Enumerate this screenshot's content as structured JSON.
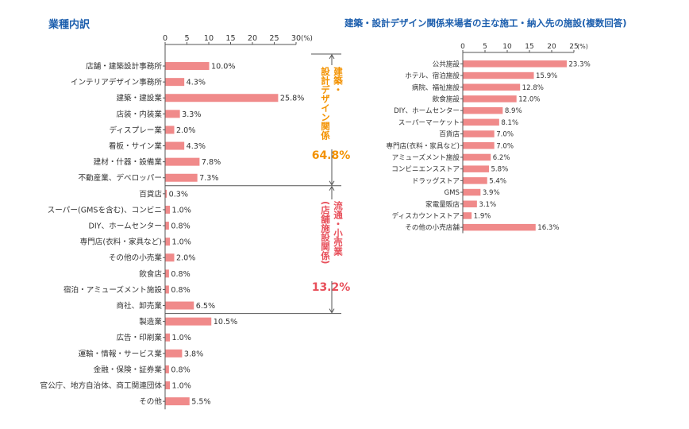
{
  "chart_data": [
    {
      "type": "bar",
      "orientation": "horizontal",
      "title": "業種内訳",
      "unit": "(%)",
      "xlim": [
        0,
        30
      ],
      "ticks": [
        0,
        5,
        10,
        15,
        20,
        25,
        30
      ],
      "tick_labels": [
        "0",
        "5",
        "10",
        "15",
        "20",
        "25",
        "30"
      ],
      "bar_color": "#f08a8a",
      "categories": [
        "店舗・建築設計事務所",
        "インテリアデザイン事務所",
        "建築・建設業",
        "店装・内装業",
        "ディスプレー業",
        "看板・サイン業",
        "建材・什器・設備業",
        "不動産業、デベロッパー",
        "百貨店",
        "スーパー(GMSを含む)、コンビニ",
        "DIY、ホームセンター",
        "専門店(衣料・家具など)",
        "その他の小売業",
        "飲食店",
        "宿泊・アミューズメント施設",
        "商社、卸売業",
        "製造業",
        "広告・印刷業",
        "運輸・情報・サービス業",
        "金融・保険・証券業",
        "官公庁、地方自治体、商工関連団体",
        "その他"
      ],
      "values": [
        10.0,
        4.3,
        25.8,
        3.3,
        2.0,
        4.3,
        7.8,
        7.3,
        0.3,
        1.0,
        0.8,
        1.0,
        2.0,
        0.8,
        0.8,
        6.5,
        10.5,
        1.0,
        3.8,
        0.8,
        1.0,
        5.5
      ],
      "value_labels": [
        "10.0%",
        "4.3%",
        "25.8%",
        "3.3%",
        "2.0%",
        "4.3%",
        "7.8%",
        "7.3%",
        "0.3%",
        "1.0%",
        "0.8%",
        "1.0%",
        "2.0%",
        "0.8%",
        "0.8%",
        "6.5%",
        "10.5%",
        "1.0%",
        "3.8%",
        "0.8%",
        "1.0%",
        "5.5%"
      ],
      "groups": [
        {
          "label": "建築・設計デザイン関係",
          "col_right": "建築・",
          "col_left": "設計デザイン関係",
          "total": "64.8%",
          "color": "#f39200",
          "first_index": 0,
          "last_index": 7
        },
        {
          "label": "流通・小売業(店舗施設関係)",
          "col_right": "流通・小売業",
          "col_left": "(店舗施設関係)",
          "total": "13.2%",
          "color": "#e8505b",
          "first_index": 8,
          "last_index": 15
        }
      ]
    },
    {
      "type": "bar",
      "orientation": "horizontal",
      "title": "建築・設計デザイン関係来場者の主な施工・納入先の施設(複数回答)",
      "unit": "(%)",
      "xlim": [
        0,
        25
      ],
      "ticks": [
        0,
        5,
        10,
        15,
        20,
        25
      ],
      "tick_labels": [
        "0",
        "5",
        "10",
        "15",
        "20",
        "25"
      ],
      "bar_color": "#f08a8a",
      "categories": [
        "公共施設",
        "ホテル、宿泊施設",
        "病院、福祉施設",
        "飲食施設",
        "DIY、ホームセンター",
        "スーパーマーケット",
        "百貨店",
        "専門店(衣料・家具など)",
        "アミューズメント施設",
        "コンビニエンスストア",
        "ドラッグストア",
        "GMS",
        "家電量販店",
        "ディスカウントストア",
        "その他の小売店舗"
      ],
      "values": [
        23.3,
        15.9,
        12.8,
        12.0,
        8.9,
        8.1,
        7.0,
        7.0,
        6.2,
        5.8,
        5.4,
        3.9,
        3.1,
        1.9,
        16.3
      ],
      "value_labels": [
        "23.3%",
        "15.9%",
        "12.8%",
        "12.0%",
        "8.9%",
        "8.1%",
        "7.0%",
        "7.0%",
        "6.2%",
        "5.8%",
        "5.4%",
        "3.9%",
        "3.1%",
        "1.9%",
        "16.3%"
      ]
    }
  ]
}
